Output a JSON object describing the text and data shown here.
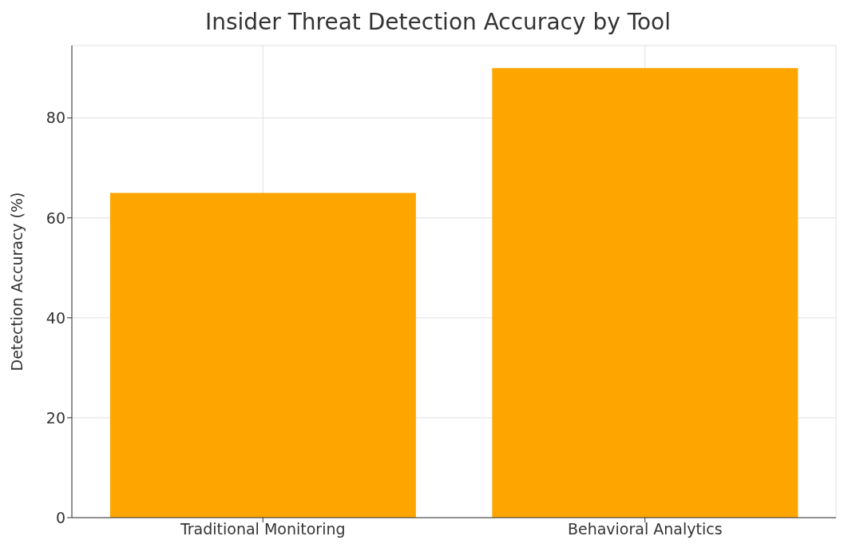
{
  "chart_data": {
    "type": "bar",
    "title": "Insider Threat Detection Accuracy by Tool",
    "ylabel": "Detection Accuracy (%)",
    "categories": [
      "Traditional Monitoring",
      "Behavioral Analytics"
    ],
    "values": [
      65,
      90
    ],
    "color": "#ffa500",
    "ylim": [
      0,
      94.5
    ],
    "yticks": [
      0,
      20,
      40,
      60,
      80
    ],
    "grid": true
  }
}
